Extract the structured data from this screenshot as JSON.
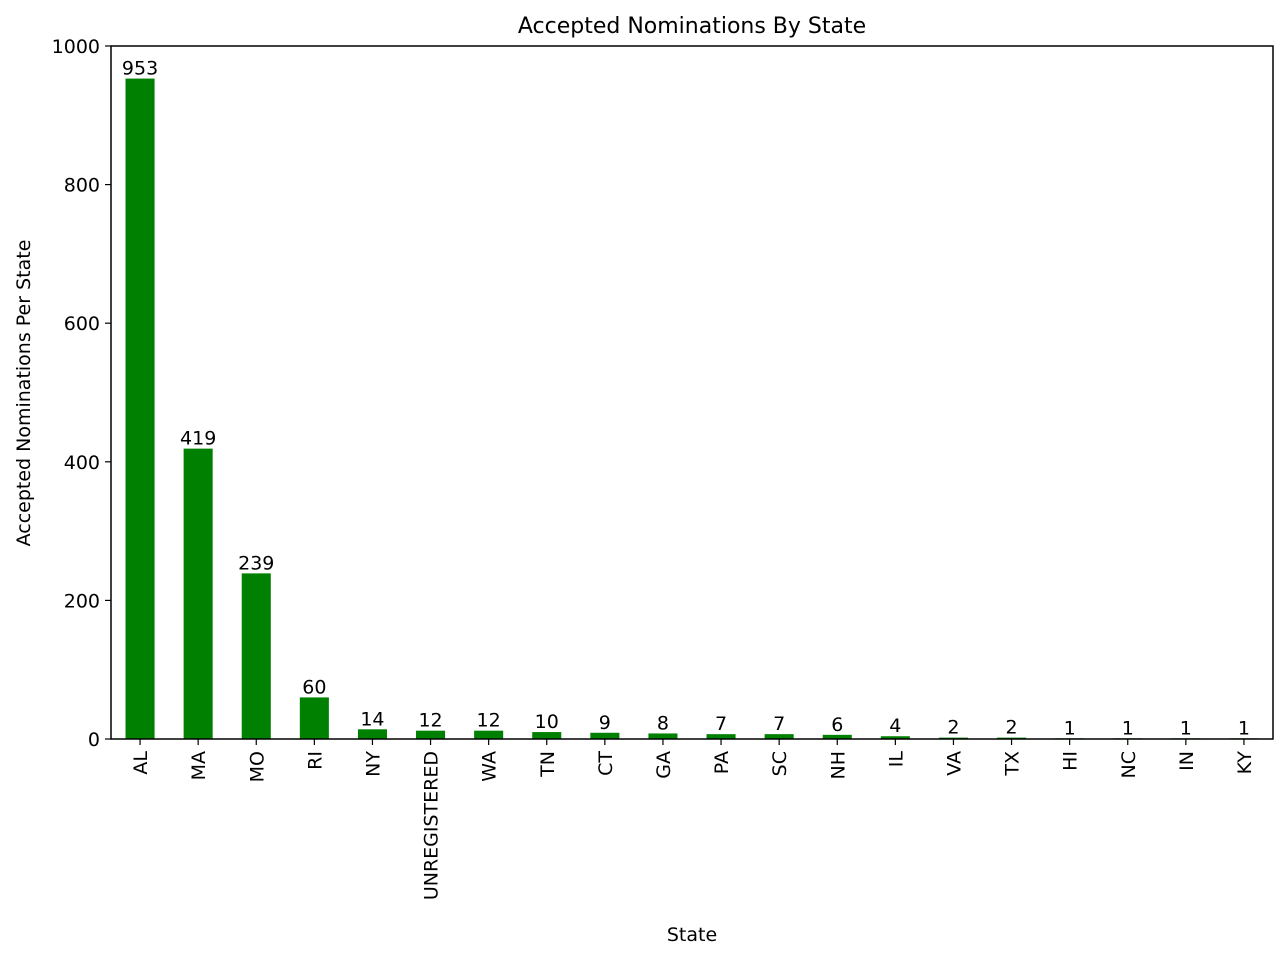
{
  "chart_data": {
    "type": "bar",
    "title": "Accepted Nominations By State",
    "xlabel": "State",
    "ylabel": "Accepted Nominations Per State",
    "categories": [
      "AL",
      "MA",
      "MO",
      "RI",
      "NY",
      "UNREGISTERED",
      "WA",
      "TN",
      "CT",
      "GA",
      "PA",
      "SC",
      "NH",
      "IL",
      "VA",
      "TX",
      "HI",
      "NC",
      "IN",
      "KY"
    ],
    "values": [
      953,
      419,
      239,
      60,
      14,
      12,
      12,
      10,
      9,
      8,
      7,
      7,
      6,
      4,
      2,
      2,
      1,
      1,
      1,
      1
    ],
    "data_labels": [
      "953",
      "419",
      "239",
      "60",
      "14",
      "12",
      "12",
      "10",
      "9",
      "8",
      "7",
      "7",
      "6",
      "4",
      "2",
      "2",
      "1",
      "1",
      "1",
      "1"
    ],
    "ylim": [
      0,
      1000
    ],
    "yticks": [
      "0",
      "200",
      "400",
      "600",
      "800",
      "1000"
    ],
    "bar_color": "#008000",
    "grid": false,
    "legend": "none"
  }
}
